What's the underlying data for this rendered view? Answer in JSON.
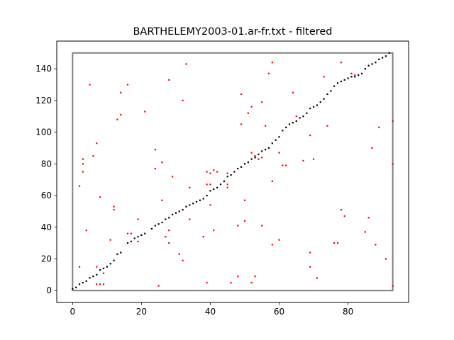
{
  "chart_data": {
    "type": "scatter",
    "title": "BARTHELEMY2003-01.ar-fr.txt - filtered",
    "xlabel": "",
    "ylabel": "",
    "xlim": [
      -4.6,
      97.6
    ],
    "ylim": [
      -7.5,
      157.5
    ],
    "xticks": [
      0,
      20,
      40,
      60,
      80
    ],
    "yticks": [
      0,
      20,
      40,
      60,
      80,
      100,
      120,
      140
    ],
    "grid": false,
    "colors": {
      "frame": "#808080",
      "alignment": "#000000",
      "candidates": "#ff0000"
    },
    "frame_box": {
      "x": [
        0,
        93
      ],
      "y": [
        0,
        150
      ]
    },
    "series": [
      {
        "color": "#000000",
        "points": [
          [
            0,
            1
          ],
          [
            1,
            2
          ],
          [
            2,
            4
          ],
          [
            3,
            5
          ],
          [
            4,
            6
          ],
          [
            5,
            8
          ],
          [
            6,
            9
          ],
          [
            7,
            10
          ],
          [
            8,
            13
          ],
          [
            9,
            14
          ],
          [
            10,
            15
          ],
          [
            11,
            17
          ],
          [
            12,
            19
          ],
          [
            13,
            23
          ],
          [
            14,
            24
          ],
          [
            16,
            30
          ],
          [
            17,
            31
          ],
          [
            18,
            33
          ],
          [
            19,
            34
          ],
          [
            20,
            35
          ],
          [
            21,
            36
          ],
          [
            23,
            39
          ],
          [
            24,
            41
          ],
          [
            25,
            42
          ],
          [
            26,
            43
          ],
          [
            27,
            45
          ],
          [
            28,
            46
          ],
          [
            29,
            48
          ],
          [
            30,
            49
          ],
          [
            31,
            50
          ],
          [
            32,
            51
          ],
          [
            33,
            53
          ],
          [
            34,
            54
          ],
          [
            35,
            55
          ],
          [
            36,
            56
          ],
          [
            37,
            57
          ],
          [
            38,
            58
          ],
          [
            39,
            60
          ],
          [
            40,
            63
          ],
          [
            41,
            64
          ],
          [
            42,
            65
          ],
          [
            43,
            67
          ],
          [
            44,
            69
          ],
          [
            45,
            72
          ],
          [
            46,
            73
          ],
          [
            47,
            75
          ],
          [
            48,
            77
          ],
          [
            49,
            78
          ],
          [
            50,
            80
          ],
          [
            51,
            81
          ],
          [
            52,
            83
          ],
          [
            53,
            84
          ],
          [
            54,
            86
          ],
          [
            55,
            88
          ],
          [
            56,
            89
          ],
          [
            57,
            90
          ],
          [
            58,
            93
          ],
          [
            59,
            95
          ],
          [
            60,
            97
          ],
          [
            61,
            101
          ],
          [
            62,
            103
          ],
          [
            63,
            105
          ],
          [
            64,
            106
          ],
          [
            65,
            107
          ],
          [
            66,
            109
          ],
          [
            67,
            110
          ],
          [
            68,
            112
          ],
          [
            69,
            115
          ],
          [
            70,
            116
          ],
          [
            71,
            117
          ],
          [
            72,
            119
          ],
          [
            73,
            121
          ],
          [
            74,
            124
          ],
          [
            75,
            126
          ],
          [
            76,
            129
          ],
          [
            77,
            131
          ],
          [
            78,
            132
          ],
          [
            79,
            133
          ],
          [
            80,
            134
          ],
          [
            81,
            135
          ],
          [
            82,
            135
          ],
          [
            83,
            136
          ],
          [
            84,
            137
          ],
          [
            85,
            140
          ],
          [
            86,
            142
          ],
          [
            87,
            143
          ],
          [
            88,
            144
          ],
          [
            89,
            146
          ],
          [
            90,
            147
          ],
          [
            91,
            148
          ],
          [
            92,
            150
          ]
        ]
      },
      {
        "color": "#ff0000",
        "points": [
          [
            2,
            15
          ],
          [
            2,
            66
          ],
          [
            3,
            80
          ],
          [
            3,
            83
          ],
          [
            3,
            75
          ],
          [
            4,
            38
          ],
          [
            5,
            130
          ],
          [
            6,
            85
          ],
          [
            7,
            93
          ],
          [
            7,
            15
          ],
          [
            7,
            4
          ],
          [
            8,
            4
          ],
          [
            8,
            59
          ],
          [
            9,
            4
          ],
          [
            9,
            11
          ],
          [
            11,
            32
          ],
          [
            12,
            53
          ],
          [
            12,
            51
          ],
          [
            13,
            108
          ],
          [
            14,
            111
          ],
          [
            14,
            125
          ],
          [
            16,
            130
          ],
          [
            16,
            36
          ],
          [
            17,
            36
          ],
          [
            19,
            45
          ],
          [
            19,
            31
          ],
          [
            21,
            113
          ],
          [
            24,
            89
          ],
          [
            24,
            77
          ],
          [
            25,
            3
          ],
          [
            26,
            81
          ],
          [
            26,
            57
          ],
          [
            27,
            34
          ],
          [
            28,
            133
          ],
          [
            28,
            38
          ],
          [
            28,
            30
          ],
          [
            29,
            72
          ],
          [
            31,
            23
          ],
          [
            32,
            120
          ],
          [
            32,
            19
          ],
          [
            33,
            143
          ],
          [
            34,
            65
          ],
          [
            34,
            45
          ],
          [
            38,
            34
          ],
          [
            39,
            75
          ],
          [
            39,
            67
          ],
          [
            39,
            5
          ],
          [
            40,
            74
          ],
          [
            40,
            54
          ],
          [
            40,
            67
          ],
          [
            41,
            76
          ],
          [
            41,
            38
          ],
          [
            42,
            75
          ],
          [
            45,
            74
          ],
          [
            45,
            65
          ],
          [
            45,
            67
          ],
          [
            46,
            5
          ],
          [
            48,
            41
          ],
          [
            48,
            9
          ],
          [
            49,
            124
          ],
          [
            49,
            105
          ],
          [
            50,
            57
          ],
          [
            50,
            44
          ],
          [
            51,
            112
          ],
          [
            52,
            116
          ],
          [
            52,
            87
          ],
          [
            52,
            5
          ],
          [
            53,
            9
          ],
          [
            53,
            85
          ],
          [
            54,
            83
          ],
          [
            55,
            119
          ],
          [
            55,
            84
          ],
          [
            55,
            41
          ],
          [
            56,
            104
          ],
          [
            57,
            137
          ],
          [
            58,
            144
          ],
          [
            58,
            69
          ],
          [
            58,
            29
          ],
          [
            60,
            87
          ],
          [
            60,
            32
          ],
          [
            61,
            79
          ],
          [
            62,
            79
          ],
          [
            64,
            125
          ],
          [
            65,
            110
          ],
          [
            67,
            82
          ],
          [
            69,
            98
          ],
          [
            69,
            24
          ],
          [
            69,
            15
          ],
          [
            70,
            83
          ],
          [
            71,
            8
          ],
          [
            73,
            135
          ],
          [
            74,
            104
          ],
          [
            76,
            30
          ],
          [
            77,
            30
          ],
          [
            78,
            144
          ],
          [
            78,
            51
          ],
          [
            79,
            47
          ],
          [
            81,
            137
          ],
          [
            82,
            136
          ],
          [
            85,
            37
          ],
          [
            86,
            46
          ],
          [
            87,
            90
          ],
          [
            88,
            29
          ],
          [
            89,
            103
          ],
          [
            91,
            20
          ],
          [
            93,
            107
          ],
          [
            93,
            80
          ],
          [
            93,
            3
          ]
        ]
      }
    ]
  }
}
